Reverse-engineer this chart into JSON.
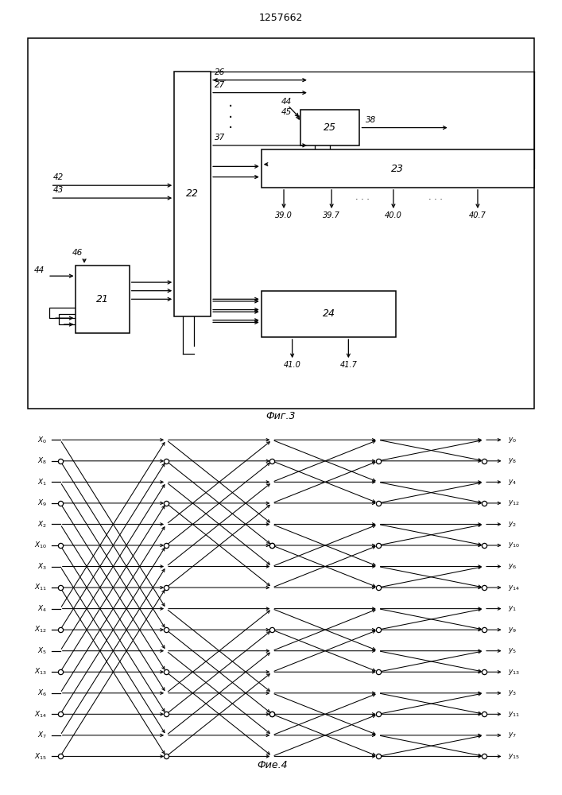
{
  "title": "1257662",
  "fig3_caption": "Фиг.3",
  "fig4_caption": "Фие.4",
  "bg_color": "#ffffff",
  "x_inputs": [
    "X_0",
    "X_8",
    "X_1",
    "X_9",
    "X_2",
    "X_{10}",
    "X_3",
    "X_{11}",
    "X_4",
    "X_{12}",
    "X_5",
    "X_{13}",
    "X_6",
    "X_{14}",
    "X_7",
    "X_{15}"
  ],
  "y_outputs": [
    "y_0",
    "y_8",
    "y_4",
    "y_{12}",
    "y_2",
    "y_{10}",
    "y_6",
    "y_{14}",
    "y_1",
    "y_9",
    "y_5",
    "y_{13}",
    "y_3",
    "y_{11}",
    "y_7",
    "y_{15}"
  ]
}
